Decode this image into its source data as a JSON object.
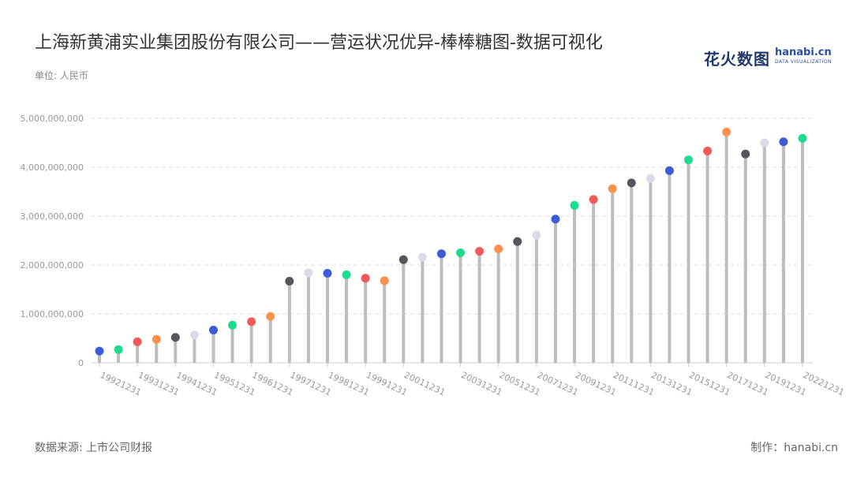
{
  "title": "上海新黄浦实业集团股份有限公司——营运状况优异-棒棒糖图-数据可视化",
  "unit_label": "单位: 人民币",
  "source": "数据来源: 上市公司财报",
  "credit": "制作：hanabi.cn",
  "logo": {
    "mark": "花火数图",
    "domain": "hanabi.cn",
    "sub": "DATA VISUALIZATION"
  },
  "colors": {
    "stem": "#bdbdbd",
    "grid": "#dddddd",
    "axis": "#cccccc",
    "palette": [
      "#3d5bd9",
      "#1ddb8f",
      "#f25a5a",
      "#ff914d",
      "#55555f",
      "#d8dbe8"
    ]
  },
  "chart_data": {
    "type": "lollipop",
    "ylim": [
      0,
      5000000000
    ],
    "y_ticks": [
      "0",
      "1,000,000,000",
      "2,000,000,000",
      "3,000,000,000",
      "4,000,000,000",
      "5,000,000,000"
    ],
    "x_tick_labels": [
      "19921231",
      "19931231",
      "19941231",
      "19951231",
      "19961231",
      "19971231",
      "19981231",
      "19991231",
      "20011231",
      "20031231",
      "20051231",
      "20071231",
      "20091231",
      "20111231",
      "20131231",
      "20151231",
      "20171231",
      "20191231",
      "20221231"
    ],
    "values": [
      240000000,
      270000000,
      430000000,
      480000000,
      520000000,
      570000000,
      670000000,
      770000000,
      840000000,
      950000000,
      1670000000,
      1840000000,
      1830000000,
      1800000000,
      1730000000,
      1680000000,
      2110000000,
      2160000000,
      2230000000,
      2250000000,
      2280000000,
      2330000000,
      2480000000,
      2610000000,
      2940000000,
      3220000000,
      3340000000,
      3560000000,
      3680000000,
      3770000000,
      3930000000,
      4150000000,
      4330000000,
      4720000000,
      4270000000,
      4500000000,
      4520000000,
      4590000000
    ]
  }
}
